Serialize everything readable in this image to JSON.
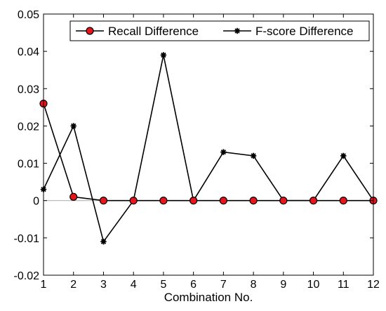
{
  "chart_data": {
    "type": "line",
    "x": [
      1,
      2,
      3,
      4,
      5,
      6,
      7,
      8,
      9,
      10,
      11,
      12
    ],
    "series": [
      {
        "name": "Recall Difference",
        "values": [
          0.026,
          0.001,
          0,
          0,
          0,
          0,
          0,
          0,
          0,
          0,
          0,
          0
        ],
        "color": "#000000",
        "marker": "circle",
        "marker_fill": "#e8141c"
      },
      {
        "name": "F-score Difference",
        "values": [
          0.003,
          0.02,
          -0.011,
          0,
          0.039,
          0,
          0.013,
          0.012,
          0,
          0,
          0.012,
          0
        ],
        "color": "#000000",
        "marker": "asterisk",
        "marker_fill": "#000000"
      }
    ],
    "xlabel": "Combination No.",
    "ylabel": "",
    "xlim": [
      1,
      12
    ],
    "ylim": [
      -0.02,
      0.05
    ],
    "xticks": [
      "1",
      "2",
      "3",
      "4",
      "5",
      "6",
      "7",
      "8",
      "9",
      "10",
      "11",
      "12"
    ],
    "yticks": [
      "-0.02",
      "-0.01",
      "0",
      "0.01",
      "0.02",
      "0.03",
      "0.04",
      "0.05"
    ],
    "zero_line": true,
    "grid": false,
    "legend_position": "top-right"
  }
}
